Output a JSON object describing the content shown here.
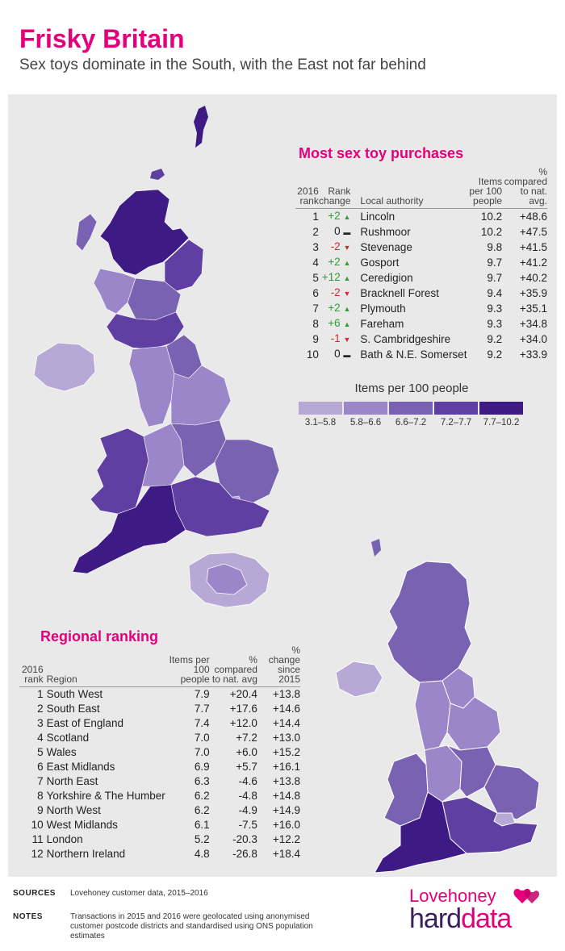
{
  "title": "Frisky Britain",
  "subtitle": "Sex toys dominate in the South, with the East not far behind",
  "colors": {
    "brand": "#e4007c",
    "scale": [
      "#b7a8d6",
      "#9a86c8",
      "#7a62b3",
      "#5f3fa2",
      "#3d1a84"
    ],
    "up": "#2ea036",
    "down": "#e0222e"
  },
  "top_table": {
    "title": "Most sex toy purchases",
    "headers": {
      "rank": "2016 rank",
      "change": "Rank change",
      "authority": "Local authority",
      "items": "Items per 100 people",
      "compared": "% compared to nat. avg."
    },
    "rows": [
      {
        "rank": "1",
        "change": "+2",
        "dir": "up",
        "name": "Lincoln",
        "items": "10.2",
        "compared": "+48.6"
      },
      {
        "rank": "2",
        "change": "0",
        "dir": "flat",
        "name": "Rushmoor",
        "items": "10.2",
        "compared": "+47.5"
      },
      {
        "rank": "3",
        "change": "-2",
        "dir": "down",
        "name": "Stevenage",
        "items": "9.8",
        "compared": "+41.5"
      },
      {
        "rank": "4",
        "change": "+2",
        "dir": "up",
        "name": "Gosport",
        "items": "9.7",
        "compared": "+41.2"
      },
      {
        "rank": "5",
        "change": "+12",
        "dir": "up",
        "name": "Ceredigion",
        "items": "9.7",
        "compared": "+40.2"
      },
      {
        "rank": "6",
        "change": "-2",
        "dir": "down",
        "name": "Bracknell Forest",
        "items": "9.4",
        "compared": "+35.9"
      },
      {
        "rank": "7",
        "change": "+2",
        "dir": "up",
        "name": "Plymouth",
        "items": "9.3",
        "compared": "+35.1"
      },
      {
        "rank": "8",
        "change": "+6",
        "dir": "up",
        "name": "Fareham",
        "items": "9.3",
        "compared": "+34.8"
      },
      {
        "rank": "9",
        "change": "-1",
        "dir": "down",
        "name": "S. Cambridgeshire",
        "items": "9.2",
        "compared": "+34.0"
      },
      {
        "rank": "10",
        "change": "0",
        "dir": "flat",
        "name": "Bath & N.E. Somerset",
        "items": "9.2",
        "compared": "+33.9"
      }
    ]
  },
  "legend": {
    "title": "Items per 100 people",
    "bins": [
      "3.1–5.8",
      "5.8–6.6",
      "6.6–7.2",
      "7.2–7.7",
      "7.7–10.2"
    ]
  },
  "regional_table": {
    "title": "Regional ranking",
    "headers": {
      "rank": "2016 rank",
      "region": "Region",
      "items": "Items per 100 people",
      "compared": "% compared to nat. avg",
      "change": "% change since 2015"
    },
    "rows": [
      {
        "rank": "1",
        "region": "South West",
        "items": "7.9",
        "compared": "+20.4",
        "change": "+13.8"
      },
      {
        "rank": "2",
        "region": "South East",
        "items": "7.7",
        "compared": "+17.6",
        "change": "+14.6"
      },
      {
        "rank": "3",
        "region": "East of England",
        "items": "7.4",
        "compared": "+12.0",
        "change": "+14.4"
      },
      {
        "rank": "4",
        "region": "Scotland",
        "items": "7.0",
        "compared": "+7.2",
        "change": "+13.0"
      },
      {
        "rank": "5",
        "region": "Wales",
        "items": "7.0",
        "compared": "+6.0",
        "change": "+15.2"
      },
      {
        "rank": "6",
        "region": "East Midlands",
        "items": "6.9",
        "compared": "+5.7",
        "change": "+16.1"
      },
      {
        "rank": "7",
        "region": "North East",
        "items": "6.3",
        "compared": "-4.6",
        "change": "+13.8"
      },
      {
        "rank": "8",
        "region": "Yorkshire & The Humber",
        "items": "6.2",
        "compared": "-4.8",
        "change": "+14.8"
      },
      {
        "rank": "9",
        "region": "North West",
        "items": "6.2",
        "compared": "-4.9",
        "change": "+14.9"
      },
      {
        "rank": "10",
        "region": "West Midlands",
        "items": "6.1",
        "compared": "-7.5",
        "change": "+16.0"
      },
      {
        "rank": "11",
        "region": "London",
        "items": "5.2",
        "compared": "-20.3",
        "change": "+12.2"
      },
      {
        "rank": "12",
        "region": "Northern Ireland",
        "items": "4.8",
        "compared": "-26.8",
        "change": "+18.4"
      }
    ]
  },
  "chart_data": [
    {
      "type": "table",
      "title": "Most sex toy purchases",
      "columns": [
        "2016 rank",
        "Rank change",
        "Local authority",
        "Items per 100 people",
        "% compared to nat. avg."
      ],
      "rows": [
        [
          1,
          2,
          "Lincoln",
          10.2,
          48.6
        ],
        [
          2,
          0,
          "Rushmoor",
          10.2,
          47.5
        ],
        [
          3,
          -2,
          "Stevenage",
          9.8,
          41.5
        ],
        [
          4,
          2,
          "Gosport",
          9.7,
          41.2
        ],
        [
          5,
          12,
          "Ceredigion",
          9.7,
          40.2
        ],
        [
          6,
          -2,
          "Bracknell Forest",
          9.4,
          35.9
        ],
        [
          7,
          2,
          "Plymouth",
          9.3,
          35.1
        ],
        [
          8,
          6,
          "Fareham",
          9.3,
          34.8
        ],
        [
          9,
          -1,
          "S. Cambridgeshire",
          9.2,
          34.0
        ],
        [
          10,
          0,
          "Bath & N.E. Somerset",
          9.2,
          33.9
        ]
      ]
    },
    {
      "type": "table",
      "title": "Regional ranking",
      "columns": [
        "2016 rank",
        "Region",
        "Items per 100 people",
        "% compared to nat. avg",
        "% change since 2015"
      ],
      "rows": [
        [
          1,
          "South West",
          7.9,
          20.4,
          13.8
        ],
        [
          2,
          "South East",
          7.7,
          17.6,
          14.6
        ],
        [
          3,
          "East of England",
          7.4,
          12.0,
          14.4
        ],
        [
          4,
          "Scotland",
          7.0,
          7.2,
          13.0
        ],
        [
          5,
          "Wales",
          7.0,
          6.0,
          15.2
        ],
        [
          6,
          "East Midlands",
          6.9,
          5.7,
          16.1
        ],
        [
          7,
          "North East",
          6.3,
          -4.6,
          13.8
        ],
        [
          8,
          "Yorkshire & The Humber",
          6.2,
          -4.8,
          14.8
        ],
        [
          9,
          "North West",
          6.2,
          -4.9,
          14.9
        ],
        [
          10,
          "West Midlands",
          6.1,
          -7.5,
          16.0
        ],
        [
          11,
          "London",
          5.2,
          -20.3,
          12.2
        ],
        [
          12,
          "Northern Ireland",
          4.8,
          -26.8,
          18.4
        ]
      ]
    }
  ],
  "sources": {
    "label": "SOURCES",
    "text": "Lovehoney customer data, 2015–2016"
  },
  "notes": {
    "label": "NOTES",
    "text": "Transactions in 2015 and 2016 were geolocated using anonymised customer postcode districts and standardised using ONS population estimates"
  },
  "logo": {
    "top": "Lovehoney",
    "bottom_a": "hard",
    "bottom_b": "data"
  }
}
